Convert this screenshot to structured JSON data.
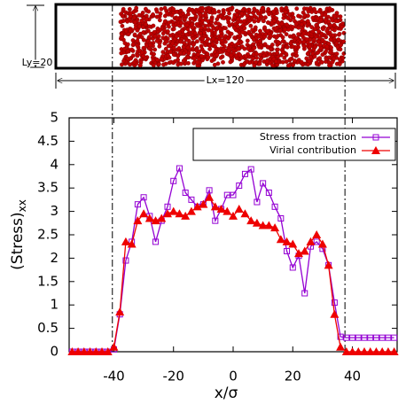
{
  "schematic": {
    "ly_label": "Ly=20",
    "lx_label": "Lx=120"
  },
  "chart_data": {
    "type": "line",
    "xlabel": "x/σ",
    "ylabel": "(Stress)",
    "ylabel_sub": "xx",
    "xlim": [
      -55,
      55
    ],
    "ylim": [
      0,
      5
    ],
    "xticks": [
      -40,
      -20,
      0,
      20,
      40
    ],
    "yticks": [
      0,
      0.5,
      1,
      1.5,
      2,
      2.5,
      3,
      3.5,
      4,
      4.5,
      5
    ],
    "vlines": [
      -40.5,
      37.5
    ],
    "legend": "upper right",
    "x": [
      -54,
      -52,
      -50,
      -48,
      -46,
      -44,
      -42,
      -40,
      -38,
      -36,
      -34,
      -32,
      -30,
      -28,
      -26,
      -24,
      -22,
      -20,
      -18,
      -16,
      -14,
      -12,
      -10,
      -8,
      -6,
      -4,
      -2,
      0,
      2,
      4,
      6,
      8,
      10,
      12,
      14,
      16,
      18,
      20,
      22,
      24,
      26,
      28,
      30,
      32,
      34,
      36,
      38,
      40,
      42,
      44,
      46,
      48,
      50,
      52,
      54
    ],
    "series": [
      {
        "name": "Stress from traction",
        "color": "#9400d3",
        "marker": "square",
        "values": [
          0,
          0,
          0,
          0,
          0,
          0,
          0,
          0.05,
          0.8,
          1.95,
          2.35,
          3.15,
          3.3,
          2.9,
          2.35,
          2.8,
          3.1,
          3.65,
          3.92,
          3.4,
          3.25,
          3.1,
          3.15,
          3.45,
          2.8,
          3.05,
          3.35,
          3.35,
          3.55,
          3.8,
          3.9,
          3.2,
          3.6,
          3.4,
          3.1,
          2.85,
          2.15,
          1.8,
          2.05,
          1.25,
          2.25,
          2.35,
          2.2,
          1.85,
          1.05,
          0.32,
          0.3,
          0.3,
          0.3,
          0.3,
          0.3,
          0.3,
          0.3,
          0.3,
          0.3
        ]
      },
      {
        "name": "Virial contribution",
        "color": "#ee0000",
        "marker": "triangle",
        "values": [
          0,
          0,
          0,
          0,
          0,
          0,
          0,
          0.1,
          0.85,
          2.35,
          2.3,
          2.8,
          2.95,
          2.85,
          2.8,
          2.85,
          2.95,
          3.0,
          2.95,
          2.9,
          3.0,
          3.1,
          3.15,
          3.3,
          3.1,
          3.05,
          3.0,
          2.9,
          3.05,
          2.95,
          2.8,
          2.75,
          2.7,
          2.7,
          2.65,
          2.4,
          2.35,
          2.3,
          2.1,
          2.15,
          2.35,
          2.5,
          2.3,
          1.85,
          0.8,
          0.1,
          0,
          0,
          0,
          0,
          0,
          0,
          0,
          0,
          0
        ]
      }
    ]
  }
}
